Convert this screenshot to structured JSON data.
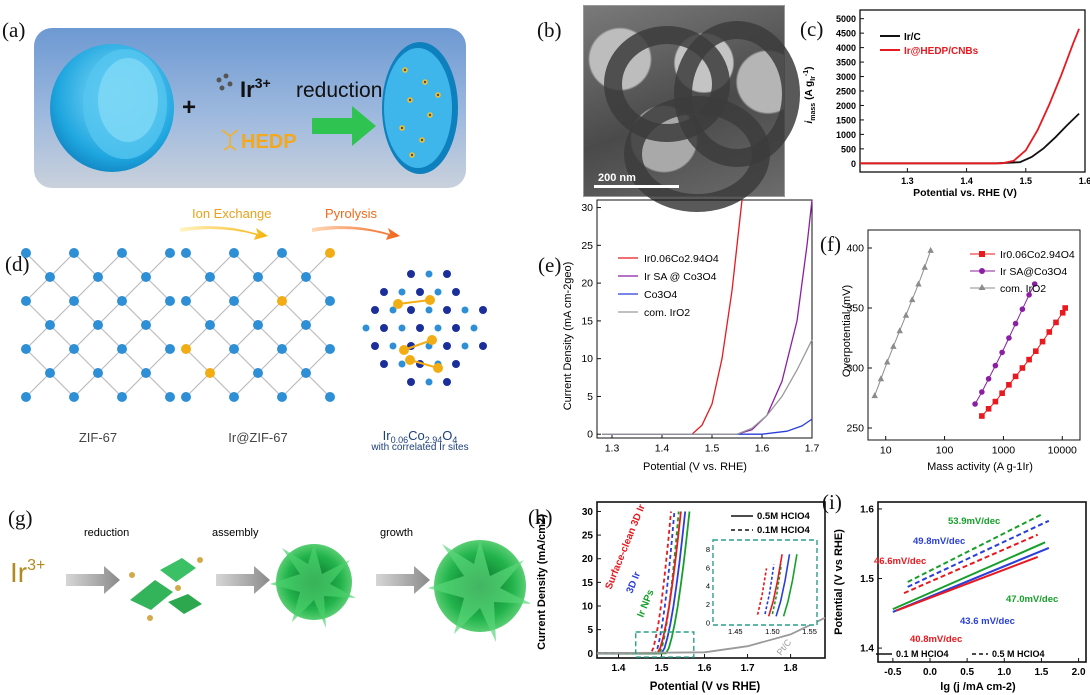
{
  "panels": {
    "a": {
      "label": "(a)",
      "ion": "Ir",
      "ion_sup": "3+",
      "plus": "+",
      "ligand": "HEDP",
      "arrow_text": "reduction"
    },
    "b": {
      "label": "(b)",
      "scale_bar": "200 nm"
    },
    "c": {
      "label": "(c)",
      "legend": [
        "Ir/C",
        "Ir@HEDP/CNBs"
      ],
      "xlabel": "Potential vs. RHE (V)",
      "ylabel_main": "i",
      "ylabel_sub": "mass",
      "ylabel_unit": "(A g",
      "ylabel_unit_sub": "Ir",
      "ylabel_unit_sup": "-1",
      "ylabel_end": ")"
    },
    "d": {
      "label": "(d)",
      "step1": "Ion Exchange",
      "step2": "Pyrolysis",
      "name1": "ZIF-67",
      "name2": "Ir@ZIF-67",
      "name3_main": "Ir",
      "name3_s1": "0.06",
      "name3_mid": "Co",
      "name3_s2": "2.94",
      "name3_o": "O",
      "name3_s3": "4",
      "name3_caption": "with correlated Ir sites"
    },
    "e": {
      "label": "(e)",
      "legend": [
        "Ir0.06Co2.94O4",
        "Ir SA @ Co3O4",
        "Co3O4",
        "com. IrO2"
      ],
      "xlabel": "Potential (V vs. RHE)",
      "ylabel": "Current Density (mA cm-2geo)"
    },
    "f": {
      "label": "(f)",
      "legend": [
        "Ir0.06Co2.94O4",
        "Ir SA@Co3O4",
        "com. IrO2"
      ],
      "xlabel": "Mass activity (A g-1Ir)",
      "ylabel": "Overpotential (mV)"
    },
    "g": {
      "label": "(g)",
      "ion": "Ir",
      "ion_sup": "3+",
      "step1": "reduction",
      "step2": "assembly",
      "step3": "growth"
    },
    "h": {
      "label": "(h)",
      "legend": [
        "0.5M HClO4",
        "0.1M HClO4"
      ],
      "tags": [
        "Surface-clean 3D Ir",
        "3D Ir",
        "Ir NPs",
        "Pt/C"
      ],
      "xlabel": "Potential (V vs RHE)",
      "ylabel": "Current Density (mA/cm2)"
    },
    "i": {
      "label": "(i)",
      "slopes": [
        "53.9mV/dec",
        "49.8mV/dec",
        "46.6mV/dec",
        "47.0mV/dec",
        "43.6 mV/dec",
        "40.8mV/dec"
      ],
      "legend": [
        "0.1 M HClO4",
        "0.5 M HClO4"
      ],
      "xlabel": "lg (j /mA cm-2)",
      "ylabel": "Potential (V vs RHE)"
    }
  },
  "chart_data": [
    {
      "panel": "c",
      "type": "line",
      "xlim": [
        1.22,
        1.6
      ],
      "ylim": [
        -300,
        5300
      ],
      "xticks": [
        1.3,
        1.4,
        1.5,
        1.6
      ],
      "yticks": [
        0,
        500,
        1000,
        1500,
        2000,
        2500,
        3000,
        3500,
        4000,
        4500,
        5000
      ],
      "series": [
        {
          "name": "Ir/C",
          "color": "#111111",
          "x": [
            1.22,
            1.45,
            1.49,
            1.51,
            1.53,
            1.55,
            1.57,
            1.59
          ],
          "y": [
            0,
            0,
            40,
            220,
            520,
            900,
            1320,
            1720
          ]
        },
        {
          "name": "Ir@HEDP/CNBs",
          "color": "#e8191f",
          "x": [
            1.22,
            1.46,
            1.48,
            1.5,
            1.52,
            1.54,
            1.56,
            1.58,
            1.59
          ],
          "y": [
            0,
            0,
            90,
            450,
            1150,
            2050,
            3050,
            4150,
            4650
          ]
        }
      ]
    },
    {
      "panel": "e",
      "type": "line",
      "xlim": [
        1.27,
        1.7
      ],
      "ylim": [
        -0.5,
        31
      ],
      "xticks": [
        1.3,
        1.4,
        1.5,
        1.6,
        1.7
      ],
      "yticks": [
        0,
        5,
        10,
        15,
        20,
        25,
        30
      ],
      "series": [
        {
          "name": "Ir0.06Co2.94O4",
          "color": "#e8191f",
          "x": [
            1.28,
            1.46,
            1.48,
            1.5,
            1.52,
            1.54,
            1.56
          ],
          "y": [
            0,
            0,
            1.2,
            4,
            10,
            19,
            31
          ]
        },
        {
          "name": "Ir SA @ Co3O4",
          "color": "#8b1fa2",
          "x": [
            1.28,
            1.55,
            1.58,
            1.61,
            1.64,
            1.67,
            1.69,
            1.7
          ],
          "y": [
            0,
            0,
            0.6,
            2.5,
            7,
            15,
            25,
            31
          ]
        },
        {
          "name": "Co3O4",
          "color": "#2a3fd8",
          "x": [
            1.28,
            1.6,
            1.65,
            1.68,
            1.7
          ],
          "y": [
            0,
            0,
            0.4,
            1.1,
            2
          ]
        },
        {
          "name": "com. IrO2",
          "color": "#9a9a9a",
          "x": [
            1.28,
            1.55,
            1.58,
            1.61,
            1.64,
            1.67,
            1.7
          ],
          "y": [
            0,
            0,
            0.8,
            2.5,
            5,
            8.5,
            12.5
          ]
        }
      ]
    },
    {
      "panel": "f",
      "type": "scatter",
      "xscale": "log",
      "xlim": [
        5,
        20000
      ],
      "ylim": [
        240,
        415
      ],
      "xticks": [
        10,
        100,
        1000,
        10000
      ],
      "yticks": [
        250,
        300,
        350,
        400
      ],
      "series": [
        {
          "name": "Ir0.06Co2.94O4",
          "color": "#e8191f",
          "marker": "square",
          "x": [
            430,
            560,
            730,
            950,
            1240,
            1610,
            2100,
            2730,
            3550,
            4620,
            6010,
            7820,
            10170,
            11200
          ],
          "y": [
            260,
            266,
            272,
            279,
            286,
            293,
            300,
            307,
            314,
            322,
            330,
            338,
            346,
            350
          ]
        },
        {
          "name": "Ir SA@Co3O4",
          "color": "#8b1fa2",
          "marker": "circle",
          "x": [
            330,
            430,
            560,
            730,
            950,
            1240,
            1610,
            2100,
            2730,
            3400
          ],
          "y": [
            270,
            280,
            291,
            302,
            313,
            325,
            337,
            349,
            361,
            370
          ]
        },
        {
          "name": "com. IrO2",
          "color": "#8c8c8c",
          "marker": "triangle",
          "x": [
            6.5,
            8.3,
            10.6,
            13.5,
            17.3,
            22.1,
            28.2,
            36,
            46,
            58
          ],
          "y": [
            277,
            291,
            305,
            318,
            331,
            344,
            357,
            370,
            384,
            398
          ]
        }
      ]
    },
    {
      "panel": "h",
      "type": "line",
      "xlim": [
        1.35,
        1.88
      ],
      "ylim": [
        -1,
        32
      ],
      "xticks": [
        1.4,
        1.5,
        1.6,
        1.7,
        1.8
      ],
      "yticks": [
        0,
        5,
        10,
        15,
        20,
        25,
        30
      ],
      "series": [
        {
          "name": "Surface-clean 3D Ir 0.5M",
          "color": "#e8191f",
          "dash": true,
          "onset": 1.475,
          "top": 1.522
        },
        {
          "name": "3D Ir 0.5M",
          "color": "#2a3fd8",
          "dash": true,
          "onset": 1.485,
          "top": 1.53
        },
        {
          "name": "Ir NPs 0.5M",
          "color": "#16a02a",
          "dash": true,
          "onset": 1.495,
          "top": 1.54
        },
        {
          "name": "Surface-clean 3D Ir 0.1M",
          "color": "#e8191f",
          "dash": false,
          "onset": 1.49,
          "top": 1.545
        },
        {
          "name": "3D Ir 0.1M",
          "color": "#2a3fd8",
          "dash": false,
          "onset": 1.5,
          "top": 1.555
        },
        {
          "name": "Ir NPs 0.1M",
          "color": "#16a02a",
          "dash": false,
          "onset": 1.51,
          "top": 1.565
        },
        {
          "name": "Pt/C",
          "color": "#9a9a9a",
          "dash": false,
          "x": [
            1.35,
            1.6,
            1.7,
            1.8,
            1.88
          ],
          "y": [
            0,
            0.2,
            1.5,
            4,
            7.5
          ]
        }
      ]
    },
    {
      "panel": "i",
      "type": "line",
      "xlim": [
        -0.7,
        2.1
      ],
      "ylim": [
        1.38,
        1.61
      ],
      "xticks": [
        -0.5,
        0.0,
        0.5,
        1.0,
        1.5,
        2.0
      ],
      "yticks": [
        1.4,
        1.5,
        1.6
      ],
      "series": [
        {
          "name": "53.9",
          "color": "#16a02a",
          "dash": true,
          "x": [
            -0.3,
            1.5
          ],
          "y": [
            1.495,
            1.592
          ]
        },
        {
          "name": "49.8",
          "color": "#2a3fd8",
          "dash": true,
          "x": [
            -0.3,
            1.6
          ],
          "y": [
            1.488,
            1.583
          ]
        },
        {
          "name": "46.6",
          "color": "#e8191f",
          "dash": true,
          "x": [
            -0.35,
            1.45
          ],
          "y": [
            1.479,
            1.563
          ]
        },
        {
          "name": "47.0",
          "color": "#16a02a",
          "dash": false,
          "x": [
            -0.5,
            1.55
          ],
          "y": [
            1.456,
            1.552
          ]
        },
        {
          "name": "43.6",
          "color": "#2a3fd8",
          "dash": false,
          "x": [
            -0.5,
            1.6
          ],
          "y": [
            1.452,
            1.544
          ]
        },
        {
          "name": "40.8",
          "color": "#e8191f",
          "dash": false,
          "x": [
            -0.45,
            1.45
          ],
          "y": [
            1.454,
            1.531
          ]
        }
      ]
    }
  ]
}
